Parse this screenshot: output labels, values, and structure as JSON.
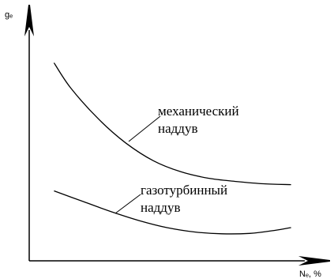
{
  "chart_data": {
    "type": "line",
    "title": "",
    "ylabel": "gₑ",
    "xlabel": "Nₑ, %",
    "xlim": [
      0,
      100
    ],
    "ylim": [
      0,
      100
    ],
    "grid": false,
    "legend": "none",
    "axis_color": "#000000",
    "line_color": "#000000",
    "series": [
      {
        "name": "механический наддув",
        "label_lines": [
          "механический",
          "наддув"
        ],
        "x": [
          9,
          15,
          25,
          35,
          45,
          55,
          65,
          75,
          85,
          95
        ],
        "y": [
          85.8,
          75.0,
          61.6,
          51.1,
          43.4,
          38.6,
          35.8,
          34.4,
          33.4,
          33.0
        ]
      },
      {
        "name": "газотурбинный наддув",
        "label_lines": [
          "газотурбинный",
          "наддув"
        ],
        "x": [
          9,
          20,
          30,
          40,
          50,
          60,
          70,
          80,
          88,
          95
        ],
        "y": [
          30.3,
          25.5,
          21.2,
          17.4,
          14.4,
          12.5,
          11.7,
          11.9,
          13.0,
          14.4
        ]
      }
    ]
  }
}
